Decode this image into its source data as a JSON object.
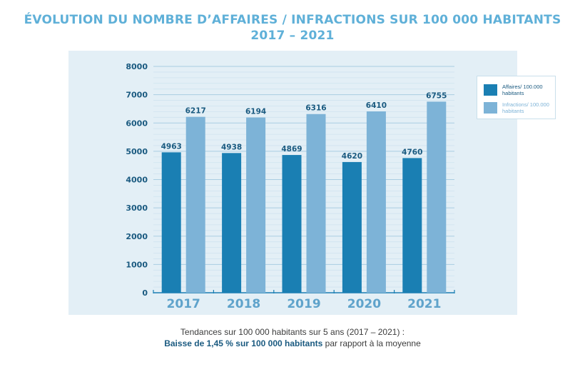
{
  "title": {
    "line1": "ÉVOLUTION DU NOMBRE D’AFFAIRES / INFRACTIONS SUR 100 000 HABITANTS",
    "line2": "2017 – 2021"
  },
  "legend": {
    "items": [
      {
        "label": "Affaires/ 100.000 habitants",
        "color": "#1a7fb3"
      },
      {
        "label": "Infractions/ 100.000 habitants",
        "color": "#7db3d7"
      }
    ]
  },
  "footnote": {
    "line1": "Tendances sur 100 000 habitants sur 5 ans (2017 – 2021) :",
    "line2_bold": "Baisse de 1,45 % sur 100 000 habitants",
    "line2_rest": " par rapport à la moyenne"
  },
  "colors": {
    "title": "#5fb0d8",
    "panel": "#e3eff6",
    "affaires": "#1a7fb3",
    "infractions": "#7db3d7",
    "axis_text": "#1a5a80",
    "category_text": "#5fa3cb"
  },
  "chart_data": {
    "type": "bar",
    "title": "ÉVOLUTION DU NOMBRE D’AFFAIRES / INFRACTIONS SUR 100 000 HABITANTS 2017 – 2021",
    "categories": [
      "2017",
      "2018",
      "2019",
      "2020",
      "2021"
    ],
    "series": [
      {
        "name": "Affaires/ 100.000 habitants",
        "values": [
          4963,
          4938,
          4869,
          4620,
          4760
        ]
      },
      {
        "name": "Infractions/ 100.000 habitants",
        "values": [
          6217,
          6194,
          6316,
          6410,
          6755
        ]
      }
    ],
    "yticks": [
      "0",
      "1000",
      "2000",
      "3000",
      "4000",
      "5000",
      "6000",
      "7000",
      "8000"
    ],
    "ylim": [
      0,
      8000
    ],
    "xlabel": "",
    "ylabel": "",
    "legend_position": "right"
  }
}
